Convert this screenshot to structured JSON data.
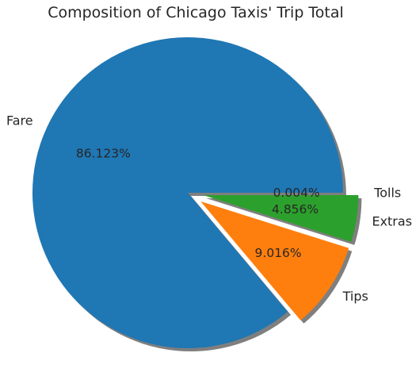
{
  "chart_data": {
    "type": "pie",
    "title": "Composition of Chicago Taxis' Trip Total",
    "slices": [
      {
        "label": "Fare",
        "value": 86.123,
        "pct_label": "86.123%",
        "color": "#1f77b4"
      },
      {
        "label": "Tips",
        "value": 9.016,
        "pct_label": "9.016%",
        "color": "#ff7f0e"
      },
      {
        "label": "Extras",
        "value": 4.856,
        "pct_label": "4.856%",
        "color": "#2ca02c"
      },
      {
        "label": "Tolls",
        "value": 0.004,
        "pct_label": "0.004%",
        "color": "#d62728"
      }
    ],
    "start_angle_deg": 0,
    "direction": "counterclockwise",
    "exploded": [
      "Tips",
      "Extras",
      "Tolls"
    ],
    "shadow": true
  }
}
